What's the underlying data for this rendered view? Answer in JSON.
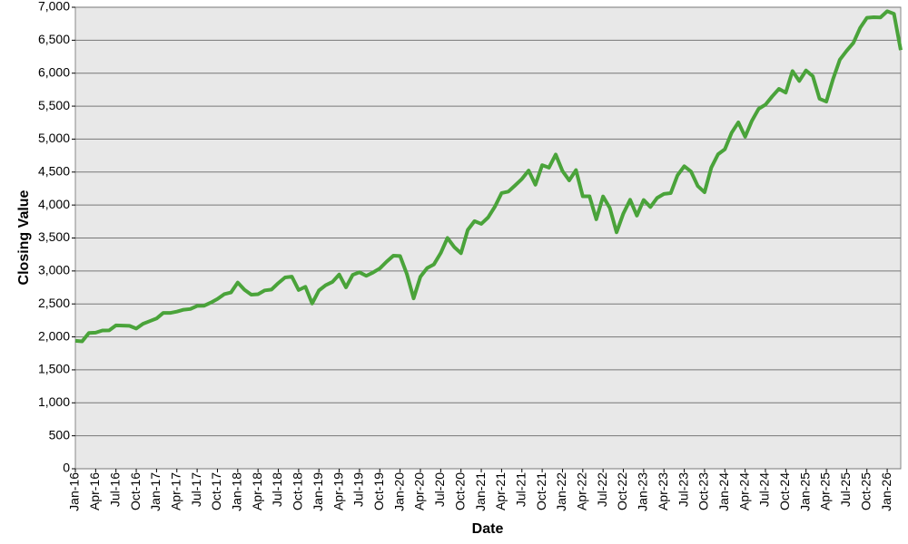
{
  "chart_data": {
    "type": "line",
    "x_label": "Date",
    "y_label": "Closing Value",
    "color": "#4aa33a",
    "grid": true,
    "x": [
      "2016-01",
      "2016-02",
      "2016-03",
      "2016-04",
      "2016-05",
      "2016-06",
      "2016-07",
      "2016-08",
      "2016-09",
      "2016-10",
      "2016-11",
      "2016-12",
      "2017-01",
      "2017-02",
      "2017-03",
      "2017-04",
      "2017-05",
      "2017-06",
      "2017-07",
      "2017-08",
      "2017-09",
      "2017-10",
      "2017-11",
      "2017-12",
      "2018-01",
      "2018-02",
      "2018-03",
      "2018-04",
      "2018-05",
      "2018-06",
      "2018-07",
      "2018-08",
      "2018-09",
      "2018-10",
      "2018-11",
      "2018-12",
      "2019-01",
      "2019-02",
      "2019-03",
      "2019-04",
      "2019-05",
      "2019-06",
      "2019-07",
      "2019-08",
      "2019-09",
      "2019-10",
      "2019-11",
      "2019-12",
      "2020-01",
      "2020-02",
      "2020-03",
      "2020-04",
      "2020-05",
      "2020-06",
      "2020-07",
      "2020-08",
      "2020-09",
      "2020-10",
      "2020-11",
      "2020-12",
      "2021-01",
      "2021-02",
      "2021-03",
      "2021-04",
      "2021-05",
      "2021-06",
      "2021-07",
      "2021-08",
      "2021-09",
      "2021-10",
      "2021-11",
      "2021-12",
      "2022-01",
      "2022-02",
      "2022-03",
      "2022-04",
      "2022-05",
      "2022-06",
      "2022-07",
      "2022-08",
      "2022-09",
      "2022-10",
      "2022-11",
      "2022-12",
      "2023-01",
      "2023-02",
      "2023-03",
      "2023-04",
      "2023-05",
      "2023-06",
      "2023-07",
      "2023-08",
      "2023-09",
      "2023-10",
      "2023-11",
      "2023-12",
      "2024-01",
      "2024-02",
      "2024-03",
      "2024-04",
      "2024-05",
      "2024-06",
      "2024-07",
      "2024-08",
      "2024-09",
      "2024-10",
      "2024-11",
      "2024-12",
      "2025-01",
      "2025-02",
      "2025-03",
      "2025-04",
      "2025-05",
      "2025-06",
      "2025-07",
      "2025-08",
      "2025-09",
      "2025-10",
      "2025-11",
      "2025-12",
      "2026-01",
      "2026-02",
      "2026-03"
    ],
    "values": [
      1940,
      1932,
      2060,
      2065,
      2097,
      2099,
      2174,
      2171,
      2168,
      2126,
      2199,
      2239,
      2279,
      2364,
      2363,
      2384,
      2412,
      2423,
      2470,
      2472,
      2519,
      2575,
      2648,
      2674,
      2824,
      2714,
      2641,
      2648,
      2705,
      2718,
      2816,
      2902,
      2914,
      2711,
      2760,
      2507,
      2704,
      2784,
      2834,
      2946,
      2752,
      2942,
      2980,
      2926,
      2977,
      3038,
      3141,
      3231,
      3226,
      2954,
      2585,
      2912,
      3044,
      3100,
      3271,
      3500,
      3363,
      3270,
      3622,
      3756,
      3714,
      3811,
      3973,
      4181,
      4204,
      4298,
      4395,
      4523,
      4308,
      4605,
      4567,
      4766,
      4516,
      4374,
      4530,
      4132,
      4132,
      3785,
      4130,
      3955,
      3586,
      3872,
      4080,
      3840,
      4077,
      3970,
      4109,
      4169,
      4180,
      4450,
      4589,
      4508,
      4288,
      4194,
      4568,
      4770,
      4846,
      5096,
      5254,
      5036,
      5278,
      5460,
      5522,
      5648,
      5762,
      5705,
      6032,
      5882,
      6041,
      5955,
      5612,
      5569,
      5912,
      6205,
      6339,
      6460,
      6688,
      6840,
      6849,
      6845,
      6940,
      6900,
      6350
    ],
    "xlim": [
      "2016-01",
      "2026-03"
    ],
    "xticks": [
      {
        "value": "2016-01",
        "label": "Jan-16"
      },
      {
        "value": "2016-04",
        "label": "Apr-16"
      },
      {
        "value": "2016-07",
        "label": "Jul-16"
      },
      {
        "value": "2016-10",
        "label": "Oct-16"
      },
      {
        "value": "2017-01",
        "label": "Jan-17"
      },
      {
        "value": "2017-04",
        "label": "Apr-17"
      },
      {
        "value": "2017-07",
        "label": "Jul-17"
      },
      {
        "value": "2017-10",
        "label": "Oct-17"
      },
      {
        "value": "2018-01",
        "label": "Jan-18"
      },
      {
        "value": "2018-04",
        "label": "Apr-18"
      },
      {
        "value": "2018-07",
        "label": "Jul-18"
      },
      {
        "value": "2018-10",
        "label": "Oct-18"
      },
      {
        "value": "2019-01",
        "label": "Jan-19"
      },
      {
        "value": "2019-04",
        "label": "Apr-19"
      },
      {
        "value": "2019-07",
        "label": "Jul-19"
      },
      {
        "value": "2019-10",
        "label": "Oct-19"
      },
      {
        "value": "2020-01",
        "label": "Jan-20"
      },
      {
        "value": "2020-04",
        "label": "Apr-20"
      },
      {
        "value": "2020-07",
        "label": "Jul-20"
      },
      {
        "value": "2020-10",
        "label": "Oct-20"
      },
      {
        "value": "2021-01",
        "label": "Jan-21"
      },
      {
        "value": "2021-04",
        "label": "Apr-21"
      },
      {
        "value": "2021-07",
        "label": "Jul-21"
      },
      {
        "value": "2021-10",
        "label": "Oct-21"
      },
      {
        "value": "2022-01",
        "label": "Jan-22"
      },
      {
        "value": "2022-04",
        "label": "Apr-22"
      },
      {
        "value": "2022-07",
        "label": "Jul-22"
      },
      {
        "value": "2022-10",
        "label": "Oct-22"
      },
      {
        "value": "2023-01",
        "label": "Jan-23"
      },
      {
        "value": "2023-04",
        "label": "Apr-23"
      },
      {
        "value": "2023-07",
        "label": "Jul-23"
      },
      {
        "value": "2023-10",
        "label": "Oct-23"
      },
      {
        "value": "2024-01",
        "label": "Jan-24"
      },
      {
        "value": "2024-04",
        "label": "Apr-24"
      },
      {
        "value": "2024-07",
        "label": "Jul-24"
      },
      {
        "value": "2024-10",
        "label": "Oct-24"
      },
      {
        "value": "2025-01",
        "label": "Jan-25"
      },
      {
        "value": "2025-04",
        "label": "Apr-25"
      },
      {
        "value": "2025-07",
        "label": "Jul-25"
      },
      {
        "value": "2025-10",
        "label": "Oct-25"
      },
      {
        "value": "2026-01",
        "label": "Jan-26"
      }
    ],
    "ylim": [
      0,
      7000
    ],
    "yticks": [
      0,
      500,
      {
        "value": 1000,
        "label": "1,000"
      },
      {
        "value": 1500,
        "label": "1,500"
      },
      {
        "value": 2000,
        "label": "2,000"
      },
      {
        "value": 2500,
        "label": "2,500"
      },
      {
        "value": 3000,
        "label": "3,000"
      },
      {
        "value": 3500,
        "label": "3,500"
      },
      {
        "value": 4000,
        "label": "4,000"
      },
      {
        "value": 4500,
        "label": "4,500"
      },
      {
        "value": 5000,
        "label": "5,000"
      },
      {
        "value": 5500,
        "label": "5,500"
      },
      {
        "value": 6000,
        "label": "6,000"
      },
      {
        "value": 6500,
        "label": "6,500"
      },
      {
        "value": 7000,
        "label": "7,000"
      }
    ]
  }
}
